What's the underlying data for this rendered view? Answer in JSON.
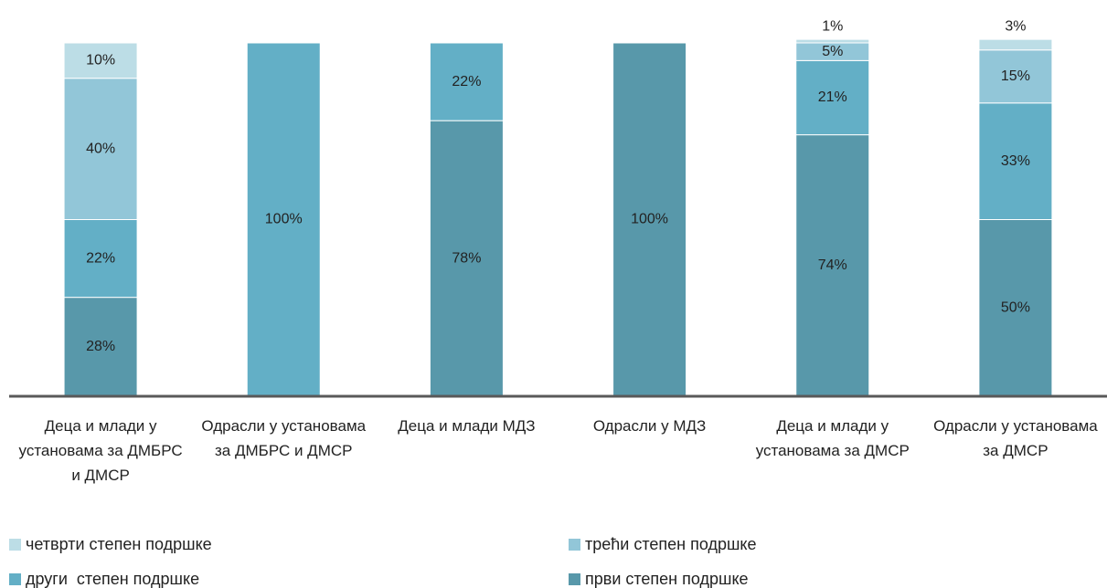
{
  "chart_data": {
    "type": "stacked-bar",
    "categories": [
      "Деца и млади у установама за ДМБРС и ДМСР",
      "Одрасли у установама за ДМБРС и ДМСР",
      "Деца и млади МДЗ",
      "Одрасли у МДЗ",
      "Деца и млади у установама за ДМСР",
      "Одрасли у установама за ДМСР"
    ],
    "ylim": [
      0,
      100
    ],
    "series": [
      {
        "name": "први степен подршке",
        "color": "#5898aa",
        "values": [
          28,
          null,
          78,
          100,
          74,
          50
        ],
        "value_labels": [
          "28%",
          null,
          "78%",
          "100%",
          "74%",
          "50%"
        ]
      },
      {
        "name": "други  степен подршке",
        "color": "#63afc6",
        "values": [
          22,
          100,
          22,
          null,
          21,
          33
        ],
        "value_labels": [
          "22%",
          "100%",
          "22%",
          null,
          "21%",
          "33%"
        ]
      },
      {
        "name": "трећи степен подршке",
        "color": "#92c6d8",
        "values": [
          40,
          null,
          null,
          null,
          5,
          15
        ],
        "value_labels": [
          "40%",
          null,
          null,
          null,
          "5%",
          "15%"
        ]
      },
      {
        "name": "четврти степен подршке",
        "color": "#bcdde6",
        "values": [
          10,
          null,
          null,
          null,
          1,
          3
        ],
        "value_labels": [
          "10%",
          null,
          null,
          null,
          "1%",
          "3%"
        ]
      }
    ]
  }
}
